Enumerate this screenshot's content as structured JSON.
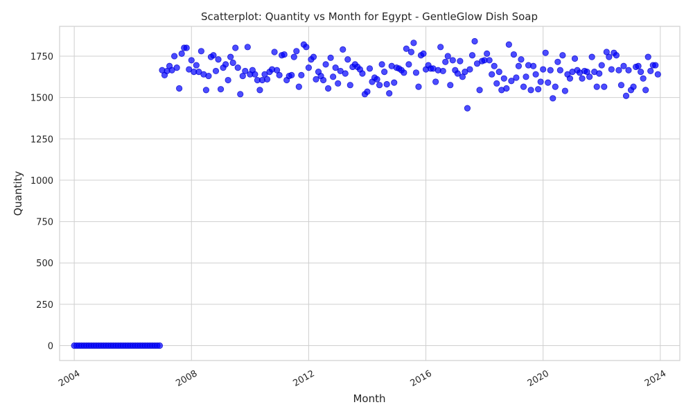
{
  "chart_data": {
    "type": "scatter",
    "title": "Scatterplot: Quantity vs Month for Egypt - GentleGlow Dish Soap",
    "xlabel": "Month",
    "ylabel": "Quantity",
    "x_type": "date",
    "xlim": [
      "2003-07",
      "2024-09"
    ],
    "ylim": [
      -90,
      1930
    ],
    "x_ticks": [
      "2004",
      "2008",
      "2012",
      "2016",
      "2020",
      "2024"
    ],
    "y_ticks": [
      0,
      250,
      500,
      750,
      1000,
      1250,
      1500,
      1750
    ],
    "grid": true,
    "legend": "none",
    "marker_color": "#0000ff",
    "x": [
      "2004-01",
      "2004-02",
      "2004-03",
      "2004-04",
      "2004-05",
      "2004-06",
      "2004-07",
      "2004-08",
      "2004-09",
      "2004-10",
      "2004-11",
      "2004-12",
      "2005-01",
      "2005-02",
      "2005-03",
      "2005-04",
      "2005-05",
      "2005-06",
      "2005-07",
      "2005-08",
      "2005-09",
      "2005-10",
      "2005-11",
      "2005-12",
      "2006-01",
      "2006-02",
      "2006-03",
      "2006-04",
      "2006-05",
      "2006-06",
      "2006-07",
      "2006-08",
      "2006-09",
      "2006-10",
      "2006-11",
      "2006-12",
      "2007-01",
      "2007-02",
      "2007-03",
      "2007-04",
      "2007-05",
      "2007-06",
      "2007-07",
      "2007-08",
      "2007-09",
      "2007-10",
      "2007-11",
      "2007-12",
      "2008-01",
      "2008-02",
      "2008-03",
      "2008-04",
      "2008-05",
      "2008-06",
      "2008-07",
      "2008-08",
      "2008-09",
      "2008-10",
      "2008-11",
      "2008-12",
      "2009-01",
      "2009-02",
      "2009-03",
      "2009-04",
      "2009-05",
      "2009-06",
      "2009-07",
      "2009-08",
      "2009-09",
      "2009-10",
      "2009-11",
      "2009-12",
      "2010-01",
      "2010-02",
      "2010-03",
      "2010-04",
      "2010-05",
      "2010-06",
      "2010-07",
      "2010-08",
      "2010-09",
      "2010-10",
      "2010-11",
      "2010-12",
      "2011-01",
      "2011-02",
      "2011-03",
      "2011-04",
      "2011-05",
      "2011-06",
      "2011-07",
      "2011-08",
      "2011-09",
      "2011-10",
      "2011-11",
      "2011-12",
      "2012-01",
      "2012-02",
      "2012-03",
      "2012-04",
      "2012-05",
      "2012-06",
      "2012-07",
      "2012-08",
      "2012-09",
      "2012-10",
      "2012-11",
      "2012-12",
      "2013-01",
      "2013-02",
      "2013-03",
      "2013-04",
      "2013-05",
      "2013-06",
      "2013-07",
      "2013-08",
      "2013-09",
      "2013-10",
      "2013-11",
      "2013-12",
      "2014-01",
      "2014-02",
      "2014-03",
      "2014-04",
      "2014-05",
      "2014-06",
      "2014-07",
      "2014-08",
      "2014-09",
      "2014-10",
      "2014-11",
      "2014-12",
      "2015-01",
      "2015-02",
      "2015-03",
      "2015-04",
      "2015-05",
      "2015-06",
      "2015-07",
      "2015-08",
      "2015-09",
      "2015-10",
      "2015-11",
      "2015-12",
      "2016-01",
      "2016-02",
      "2016-03",
      "2016-04",
      "2016-05",
      "2016-06",
      "2016-07",
      "2016-08",
      "2016-09",
      "2016-10",
      "2016-11",
      "2016-12",
      "2017-01",
      "2017-02",
      "2017-03",
      "2017-04",
      "2017-05",
      "2017-06",
      "2017-07",
      "2017-08",
      "2017-09",
      "2017-10",
      "2017-11",
      "2017-12",
      "2018-01",
      "2018-02",
      "2018-03",
      "2018-04",
      "2018-05",
      "2018-06",
      "2018-07",
      "2018-08",
      "2018-09",
      "2018-10",
      "2018-11",
      "2018-12",
      "2019-01",
      "2019-02",
      "2019-03",
      "2019-04",
      "2019-05",
      "2019-06",
      "2019-07",
      "2019-08",
      "2019-09",
      "2019-10",
      "2019-11",
      "2019-12",
      "2020-01",
      "2020-02",
      "2020-03",
      "2020-04",
      "2020-05",
      "2020-06",
      "2020-07",
      "2020-08",
      "2020-09",
      "2020-10",
      "2020-11",
      "2020-12",
      "2021-01",
      "2021-02",
      "2021-03",
      "2021-04",
      "2021-05",
      "2021-06",
      "2021-07",
      "2021-08",
      "2021-09",
      "2021-10",
      "2021-11",
      "2021-12",
      "2022-01",
      "2022-02",
      "2022-03",
      "2022-04",
      "2022-05",
      "2022-06",
      "2022-07",
      "2022-08",
      "2022-09",
      "2022-10",
      "2022-11",
      "2022-12",
      "2023-01",
      "2023-02",
      "2023-03",
      "2023-04",
      "2023-05",
      "2023-06",
      "2023-07",
      "2023-08",
      "2023-09",
      "2023-10",
      "2023-11",
      "2023-12"
    ],
    "y": [
      0,
      0,
      0,
      0,
      0,
      0,
      0,
      0,
      0,
      0,
      0,
      0,
      0,
      0,
      0,
      0,
      0,
      0,
      0,
      0,
      0,
      0,
      0,
      0,
      0,
      0,
      0,
      0,
      0,
      0,
      0,
      0,
      0,
      0,
      0,
      0,
      1665,
      1635,
      1660,
      1690,
      1665,
      1750,
      1680,
      1555,
      1765,
      1800,
      1800,
      1670,
      1725,
      1655,
      1695,
      1655,
      1780,
      1640,
      1545,
      1630,
      1745,
      1755,
      1660,
      1730,
      1550,
      1680,
      1700,
      1605,
      1745,
      1710,
      1800,
      1680,
      1520,
      1630,
      1660,
      1805,
      1640,
      1665,
      1640,
      1605,
      1545,
      1605,
      1640,
      1610,
      1655,
      1670,
      1775,
      1665,
      1635,
      1755,
      1760,
      1605,
      1630,
      1635,
      1745,
      1780,
      1565,
      1635,
      1820,
      1805,
      1680,
      1730,
      1745,
      1610,
      1655,
      1630,
      1605,
      1700,
      1555,
      1740,
      1625,
      1680,
      1585,
      1660,
      1790,
      1645,
      1730,
      1575,
      1685,
      1700,
      1685,
      1670,
      1645,
      1520,
      1535,
      1675,
      1595,
      1620,
      1610,
      1575,
      1700,
      1655,
      1580,
      1525,
      1690,
      1590,
      1680,
      1675,
      1665,
      1650,
      1795,
      1700,
      1775,
      1830,
      1650,
      1565,
      1755,
      1765,
      1670,
      1695,
      1675,
      1675,
      1595,
      1665,
      1805,
      1660,
      1715,
      1750,
      1575,
      1725,
      1665,
      1645,
      1720,
      1625,
      1655,
      1435,
      1670,
      1755,
      1840,
      1705,
      1545,
      1720,
      1725,
      1765,
      1725,
      1640,
      1690,
      1585,
      1655,
      1545,
      1615,
      1555,
      1820,
      1600,
      1760,
      1620,
      1690,
      1730,
      1565,
      1625,
      1695,
      1545,
      1690,
      1640,
      1550,
      1595,
      1670,
      1770,
      1590,
      1665,
      1495,
      1565,
      1715,
      1665,
      1755,
      1540,
      1640,
      1615,
      1655,
      1735,
      1665,
      1650,
      1615,
      1660,
      1655,
      1625,
      1745,
      1655,
      1565,
      1645,
      1695,
      1565,
      1775,
      1745,
      1670,
      1770,
      1755,
      1665,
      1575,
      1690,
      1510,
      1665,
      1545,
      1565,
      1685,
      1690,
      1655,
      1615,
      1545,
      1745,
      1660,
      1695,
      1695,
      1640
    ]
  }
}
